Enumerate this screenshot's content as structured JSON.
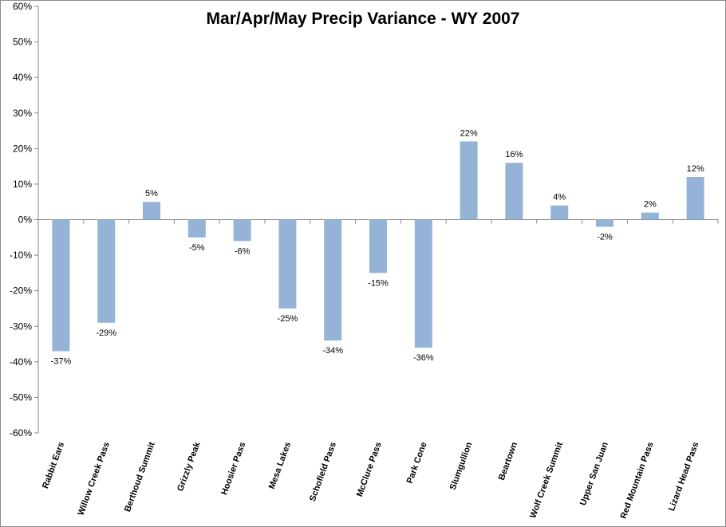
{
  "chart_data": {
    "type": "bar",
    "title": "Mar/Apr/May Precip Variance - WY 2007",
    "xlabel": "",
    "ylabel": "",
    "categories": [
      "Rabbit Ears",
      "Willow Creek Pass",
      "Berthoud Summit",
      "Grizzly Peak",
      "Hoosier Pass",
      "Mesa Lakes",
      "Schofield Pass",
      "McClure Pass",
      "Park Cone",
      "Slumgullion",
      "Beartown",
      "Wolf Creek Summit",
      "Upper San Juan",
      "Red Mountain Pass",
      "Lizard Head Pass"
    ],
    "values": [
      -37,
      -29,
      5,
      -5,
      -6,
      -25,
      -34,
      -15,
      -36,
      22,
      16,
      4,
      -2,
      2,
      12
    ],
    "data_labels": [
      "-37%",
      "-29%",
      "5%",
      "-5%",
      "-6%",
      "-25%",
      "-34%",
      "-15%",
      "-36%",
      "22%",
      "16%",
      "4%",
      "-2%",
      "2%",
      "12%"
    ],
    "ylim": [
      -60,
      60
    ],
    "y_ticks": [
      "-60%",
      "-50%",
      "-40%",
      "-30%",
      "-20%",
      "-10%",
      "0%",
      "10%",
      "20%",
      "30%",
      "40%",
      "50%",
      "60%"
    ],
    "grid": false,
    "legend": "none",
    "bar_color": "#95b3d7"
  }
}
